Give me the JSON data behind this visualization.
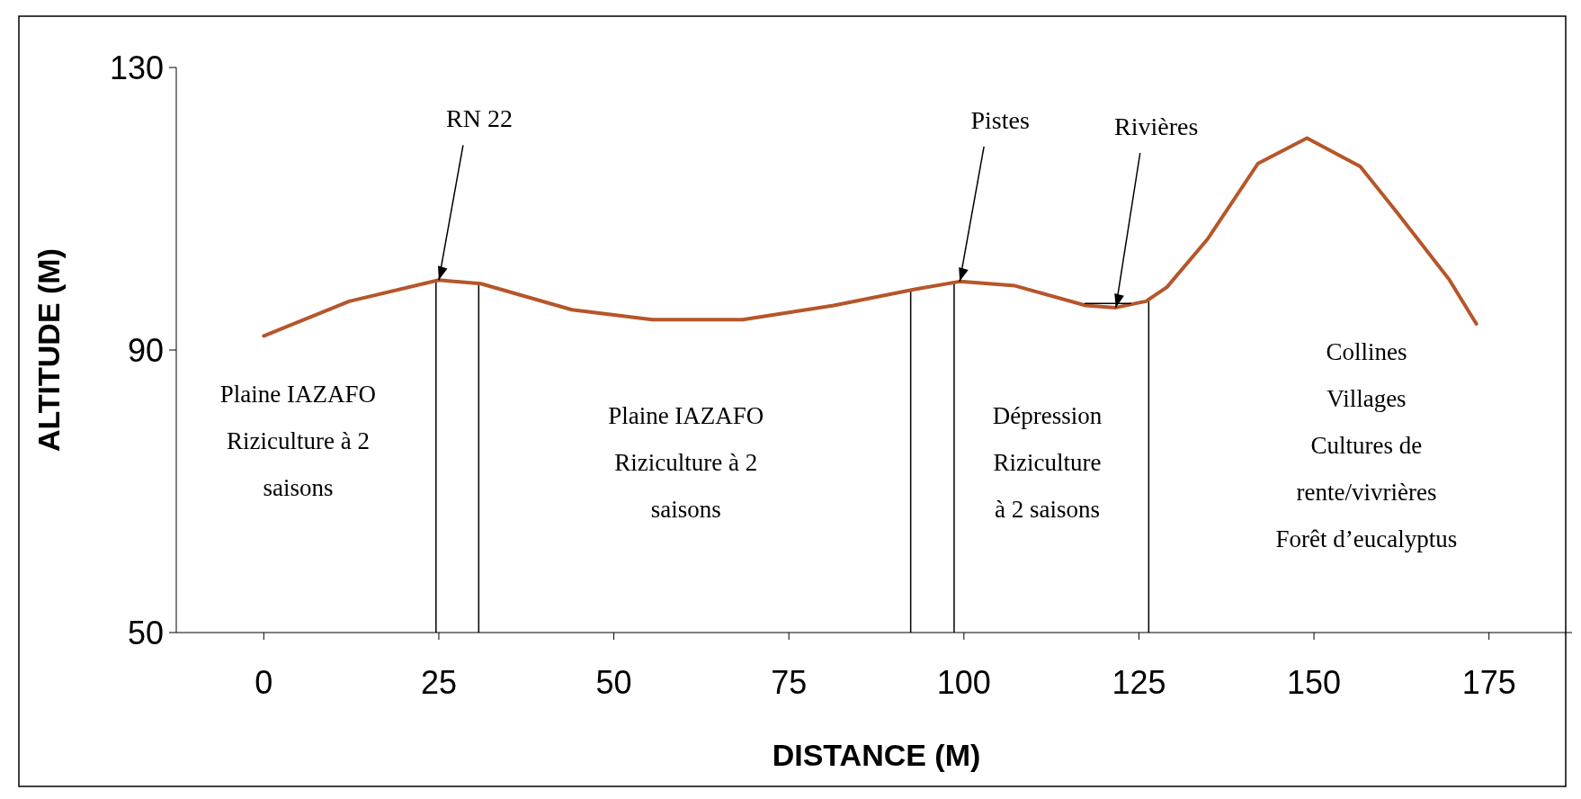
{
  "chart_data": {
    "type": "line",
    "xlabel": "DISTANCE (M)",
    "ylabel": "ALTITUDE (M)",
    "xlim": [
      -12.5,
      187.5
    ],
    "xticks": [
      0,
      25,
      50,
      75,
      100,
      125,
      150,
      175
    ],
    "ylim": [
      50,
      130
    ],
    "yticks": [
      50,
      90,
      130
    ],
    "grid": false,
    "series": [
      {
        "color": "#b5562a",
        "x": [
          0,
          12.2,
          25,
          31,
          44,
          55.5,
          68.4,
          81.4,
          93,
          99.4,
          107.3,
          117.4,
          121.7,
          126,
          129,
          134.8,
          142,
          149,
          156.6,
          162,
          169.3,
          173.2
        ],
        "values": [
          92,
          96.9,
          99.9,
          99.4,
          95.7,
          94.3,
          94.3,
          96.3,
          98.6,
          99.7,
          99.1,
          96.3,
          96,
          96.9,
          98.9,
          105.7,
          116.4,
          120,
          116,
          109.3,
          100,
          93.7
        ]
      },
      {
        "color": "#000000",
        "x": [
          117.3,
          123.8
        ],
        "values": [
          96.6,
          96.6
        ]
      }
    ],
    "ref_lines": [
      {
        "axis": "x",
        "value": 24.6,
        "color": "#000000"
      },
      {
        "axis": "x",
        "value": 30.7,
        "color": "#000000"
      },
      {
        "axis": "x",
        "value": 92.4,
        "color": "#000000"
      },
      {
        "axis": "x",
        "value": 98.6,
        "color": "#000000"
      },
      {
        "axis": "x",
        "value": 126.4,
        "color": "#000000"
      }
    ],
    "annotations": [
      {
        "text": "RN 22",
        "x": 25,
        "y": 99.9
      },
      {
        "text": "Pistes",
        "x": 99.4,
        "y": 99.7
      },
      {
        "text": "Rivières",
        "x": 121.7,
        "y": 96
      },
      "Plaine IAZAFO\nRiziculture à 2\nsaisons",
      "Plaine IAZAFO\nRiziculture à 2\nsaisons",
      "Dépression\nRiziculture\nà 2 saisons",
      "Collines\nVillages\nCultures de\nrente/vivrières\nForêt d’eucalyptus"
    ]
  }
}
